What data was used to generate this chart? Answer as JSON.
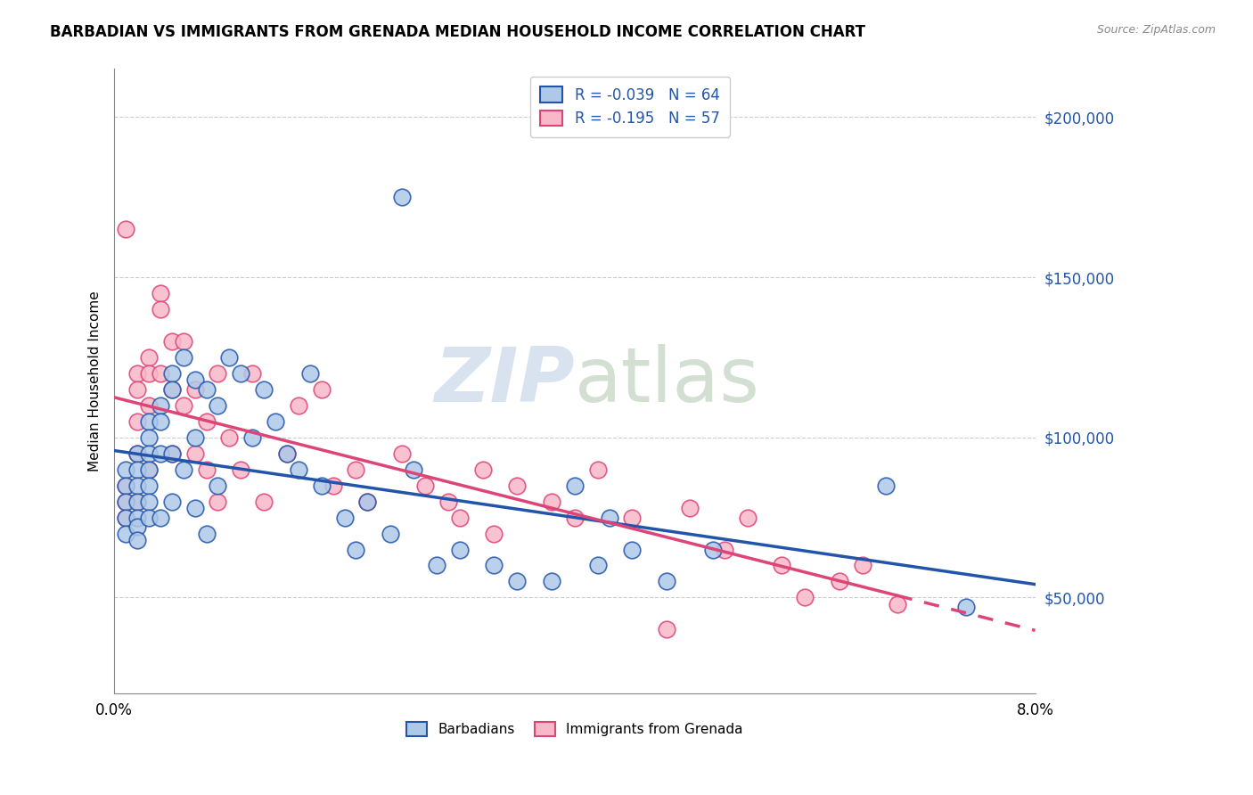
{
  "title": "BARBADIAN VS IMMIGRANTS FROM GRENADA MEDIAN HOUSEHOLD INCOME CORRELATION CHART",
  "source": "Source: ZipAtlas.com",
  "ylabel": "Median Household Income",
  "watermark_zip": "ZIP",
  "watermark_atlas": "atlas",
  "legend_label1": "Barbadians",
  "legend_label2": "Immigrants from Grenada",
  "r1": "-0.039",
  "n1": "64",
  "r2": "-0.195",
  "n2": "57",
  "yticks": [
    50000,
    100000,
    150000,
    200000
  ],
  "ytick_labels": [
    "$50,000",
    "$100,000",
    "$150,000",
    "$200,000"
  ],
  "xlim": [
    0.0,
    0.08
  ],
  "ylim": [
    20000,
    215000
  ],
  "color_blue": "#aec8e8",
  "color_pink": "#f8b8c8",
  "line_blue": "#2255aa",
  "line_pink": "#dd4477",
  "barbadians_x": [
    0.001,
    0.001,
    0.001,
    0.001,
    0.001,
    0.002,
    0.002,
    0.002,
    0.002,
    0.002,
    0.002,
    0.002,
    0.003,
    0.003,
    0.003,
    0.003,
    0.003,
    0.003,
    0.003,
    0.004,
    0.004,
    0.004,
    0.004,
    0.005,
    0.005,
    0.005,
    0.005,
    0.006,
    0.006,
    0.007,
    0.007,
    0.007,
    0.008,
    0.008,
    0.009,
    0.009,
    0.01,
    0.011,
    0.012,
    0.013,
    0.014,
    0.015,
    0.016,
    0.017,
    0.018,
    0.02,
    0.021,
    0.022,
    0.024,
    0.025,
    0.026,
    0.028,
    0.03,
    0.033,
    0.035,
    0.038,
    0.04,
    0.042,
    0.043,
    0.045,
    0.048,
    0.052,
    0.067,
    0.074
  ],
  "barbadians_y": [
    90000,
    85000,
    80000,
    75000,
    70000,
    95000,
    90000,
    85000,
    80000,
    75000,
    72000,
    68000,
    105000,
    100000,
    95000,
    90000,
    85000,
    80000,
    75000,
    110000,
    105000,
    95000,
    75000,
    120000,
    115000,
    95000,
    80000,
    125000,
    90000,
    118000,
    100000,
    78000,
    115000,
    70000,
    110000,
    85000,
    125000,
    120000,
    100000,
    115000,
    105000,
    95000,
    90000,
    120000,
    85000,
    75000,
    65000,
    80000,
    70000,
    175000,
    90000,
    60000,
    65000,
    60000,
    55000,
    55000,
    85000,
    60000,
    75000,
    65000,
    55000,
    65000,
    85000,
    47000
  ],
  "grenada_x": [
    0.001,
    0.001,
    0.001,
    0.001,
    0.002,
    0.002,
    0.002,
    0.002,
    0.002,
    0.003,
    0.003,
    0.003,
    0.003,
    0.004,
    0.004,
    0.004,
    0.005,
    0.005,
    0.005,
    0.006,
    0.006,
    0.007,
    0.007,
    0.008,
    0.008,
    0.009,
    0.009,
    0.01,
    0.011,
    0.012,
    0.013,
    0.015,
    0.016,
    0.018,
    0.019,
    0.021,
    0.022,
    0.025,
    0.027,
    0.029,
    0.03,
    0.032,
    0.033,
    0.035,
    0.038,
    0.04,
    0.042,
    0.045,
    0.048,
    0.05,
    0.053,
    0.055,
    0.058,
    0.06,
    0.063,
    0.065,
    0.068
  ],
  "grenada_y": [
    85000,
    80000,
    75000,
    165000,
    120000,
    115000,
    105000,
    95000,
    80000,
    125000,
    120000,
    110000,
    90000,
    145000,
    140000,
    120000,
    130000,
    115000,
    95000,
    130000,
    110000,
    115000,
    95000,
    105000,
    90000,
    120000,
    80000,
    100000,
    90000,
    120000,
    80000,
    95000,
    110000,
    115000,
    85000,
    90000,
    80000,
    95000,
    85000,
    80000,
    75000,
    90000,
    70000,
    85000,
    80000,
    75000,
    90000,
    75000,
    40000,
    78000,
    65000,
    75000,
    60000,
    50000,
    55000,
    60000,
    48000
  ]
}
